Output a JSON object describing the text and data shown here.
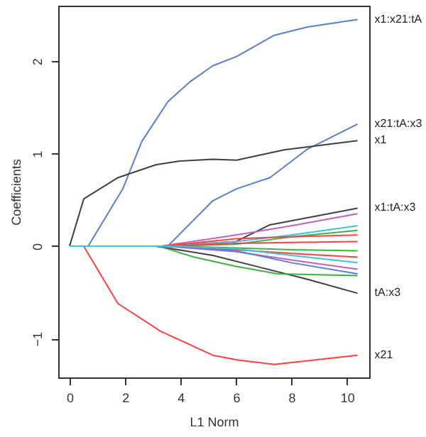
{
  "chart_data": {
    "type": "line",
    "xlabel": "L1 Norm",
    "ylabel": "Coefficients",
    "xlim": [
      -0.41,
      10.8
    ],
    "ylim": [
      -1.42,
      2.6
    ],
    "xticks": [
      0,
      2,
      4,
      6,
      8,
      10
    ],
    "yticks": [
      -1,
      0,
      1,
      2
    ],
    "grid": false,
    "legend": false,
    "marker": "none",
    "line_style": "solid",
    "series": [
      {
        "name": "x1:x21:tA",
        "color": "#5a7fd0",
        "x": [
          0,
          0.67,
          1.92,
          2.6,
          3.54,
          4.31,
          5.16,
          6.02,
          7.38,
          8.58,
          10.38
        ],
        "values": [
          0,
          0,
          0.62,
          1.13,
          1.56,
          1.77,
          1.95,
          2.05,
          2.28,
          2.37,
          2.45
        ]
      },
      {
        "name": "x21:tA:x3",
        "color": "#5a7fd0",
        "x": [
          0,
          3.54,
          5.16,
          6.02,
          7.22,
          8.58,
          10.38
        ],
        "values": [
          0,
          0,
          0.49,
          0.62,
          0.74,
          1.05,
          1.32
        ]
      },
      {
        "name": "x1",
        "color": "#404040",
        "x": [
          0,
          0.51,
          1.74,
          3.11,
          3.97,
          5.16,
          6.02,
          7.73,
          10.38
        ],
        "values": [
          0,
          0.51,
          0.74,
          0.88,
          0.92,
          0.94,
          0.93,
          1.04,
          1.14
        ]
      },
      {
        "name": "x1:tA:x3",
        "color": "#404040",
        "x": [
          0,
          3.3,
          6.0,
          7.22,
          10.38
        ],
        "values": [
          0,
          0,
          0.05,
          0.23,
          0.41
        ]
      },
      {
        "name": "tA:x3",
        "color": "#404040",
        "x": [
          0,
          3.1,
          5.16,
          6.87,
          8.58,
          10.38
        ],
        "values": [
          0,
          0,
          -0.1,
          -0.23,
          -0.36,
          -0.51
        ]
      },
      {
        "name": "x21",
        "color": "#ff4040",
        "x": [
          0,
          0.51,
          1.74,
          3.28,
          5.16,
          6.02,
          7.38,
          10.38
        ],
        "values": [
          0,
          0,
          -0.62,
          -0.92,
          -1.18,
          -1.23,
          -1.28,
          -1.18
        ]
      },
      {
        "color": "#c060c0",
        "x": [
          0,
          3.3,
          6.0,
          8.0,
          10.38
        ],
        "values": [
          0,
          0,
          0.12,
          0.22,
          0.35
        ]
      },
      {
        "color": "#40c0e0",
        "x": [
          0,
          3.5,
          6.0,
          8.0,
          10.38
        ],
        "values": [
          0,
          0,
          0.05,
          0.12,
          0.22
        ]
      },
      {
        "color": "#40b040",
        "x": [
          0,
          3.6,
          6.0,
          8.0,
          10.38
        ],
        "values": [
          0,
          0,
          0.02,
          0.1,
          0.17
        ]
      },
      {
        "color": "#ff4040",
        "x": [
          0,
          3.4,
          6.0,
          8.0,
          10.38
        ],
        "values": [
          0,
          0,
          0.08,
          0.1,
          0.12
        ]
      },
      {
        "color": "#ff4040",
        "x": [
          0,
          3.6,
          6.0,
          8.0,
          10.38
        ],
        "values": [
          0,
          0,
          0.03,
          0.04,
          0.05
        ]
      },
      {
        "color": "#40b040",
        "x": [
          0,
          3.7,
          6.0,
          8.0,
          10.38
        ],
        "values": [
          0,
          0,
          -0.02,
          -0.04,
          -0.05
        ]
      },
      {
        "color": "#ff4040",
        "x": [
          0,
          3.5,
          6.0,
          8.0,
          10.38
        ],
        "values": [
          0,
          0,
          -0.04,
          -0.08,
          -0.12
        ]
      },
      {
        "color": "#c060c0",
        "x": [
          0,
          3.4,
          6.0,
          8.0,
          10.38
        ],
        "values": [
          0,
          0,
          -0.06,
          -0.15,
          -0.25
        ]
      },
      {
        "color": "#5a7fd0",
        "x": [
          0,
          3.6,
          6.0,
          8.0,
          10.38
        ],
        "values": [
          0,
          0,
          -0.05,
          -0.18,
          -0.3
        ]
      },
      {
        "color": "#40b040",
        "x": [
          0,
          3.2,
          4.5,
          6.0,
          7.5,
          10.38
        ],
        "values": [
          0,
          0,
          -0.12,
          -0.22,
          -0.3,
          -0.32
        ]
      },
      {
        "color": "#40c0e0",
        "x": [
          0,
          3.8,
          6.0,
          8.0,
          10.38
        ],
        "values": [
          0,
          0,
          -0.03,
          -0.1,
          -0.18
        ]
      }
    ]
  }
}
